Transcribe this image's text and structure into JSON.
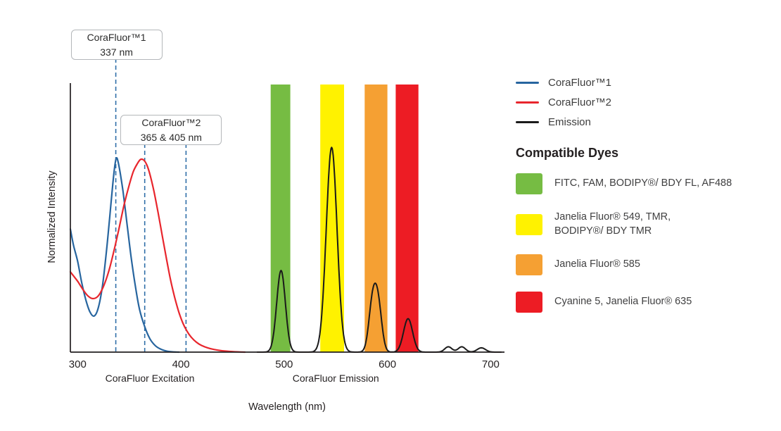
{
  "chart_data": {
    "type": "line",
    "xlabel": "Wavelength (nm)",
    "ylabel": "Normalized Intensity",
    "xlim": [
      293,
      712
    ],
    "ylim": [
      0,
      1
    ],
    "x_ticks": [
      300,
      400,
      500,
      600,
      700
    ],
    "grid": false,
    "axis_color": "#231f20",
    "marker_color": "#2f6ea8",
    "axis_section_labels": [
      {
        "text": "CoraFluor Excitation",
        "x": 370
      },
      {
        "text": "CoraFluor Emission",
        "x": 550
      }
    ],
    "callouts": [
      {
        "title": "CoraFluor™1",
        "value": "337 nm"
      },
      {
        "title": "CoraFluor™2",
        "value": "365 & 405 nm"
      }
    ],
    "excitation_markers": [
      {
        "nm": 337,
        "callout": 0
      },
      {
        "nm": 365,
        "callout": 1
      },
      {
        "nm": 405,
        "callout": 1
      }
    ],
    "bands": [
      {
        "range": [
          487,
          506
        ],
        "color": "#76bc43",
        "dyes": "FITC, FAM, BODIPY®/ BDY FL, AF488"
      },
      {
        "range": [
          535,
          558
        ],
        "color": "#fff200",
        "dyes": "Janelia Fluor® 549, TMR, BODIPY®/ BDY TMR"
      },
      {
        "range": [
          578,
          600
        ],
        "color": "#f5a033",
        "dyes": "Janelia Fluor® 585"
      },
      {
        "range": [
          608,
          630
        ],
        "color": "#ed1c24",
        "dyes": "Cyanine 5, Janelia Fluor® 635"
      }
    ],
    "series": [
      {
        "name": "CoraFluor™1",
        "color": "#27659f",
        "points": [
          [
            293,
            0.46
          ],
          [
            296,
            0.4
          ],
          [
            300,
            0.34
          ],
          [
            304,
            0.26
          ],
          [
            308,
            0.195
          ],
          [
            312,
            0.15
          ],
          [
            316,
            0.135
          ],
          [
            320,
            0.165
          ],
          [
            324,
            0.245
          ],
          [
            328,
            0.38
          ],
          [
            331,
            0.5
          ],
          [
            334,
            0.625
          ],
          [
            336,
            0.695
          ],
          [
            337.5,
            0.725
          ],
          [
            339,
            0.715
          ],
          [
            341,
            0.675
          ],
          [
            344,
            0.6
          ],
          [
            348,
            0.475
          ],
          [
            352,
            0.35
          ],
          [
            356,
            0.245
          ],
          [
            360,
            0.16
          ],
          [
            365,
            0.095
          ],
          [
            370,
            0.05
          ],
          [
            375,
            0.025
          ],
          [
            380,
            0.012
          ],
          [
            386,
            0.004
          ],
          [
            392,
            0.001
          ],
          [
            398,
            0
          ]
        ]
      },
      {
        "name": "CoraFluor™2",
        "color": "#e8262d",
        "points": [
          [
            293,
            0.3
          ],
          [
            297,
            0.28
          ],
          [
            300,
            0.265
          ],
          [
            305,
            0.235
          ],
          [
            310,
            0.21
          ],
          [
            315,
            0.2
          ],
          [
            320,
            0.21
          ],
          [
            325,
            0.245
          ],
          [
            330,
            0.3
          ],
          [
            335,
            0.375
          ],
          [
            340,
            0.46
          ],
          [
            345,
            0.55
          ],
          [
            350,
            0.625
          ],
          [
            354,
            0.675
          ],
          [
            358,
            0.705
          ],
          [
            361,
            0.72
          ],
          [
            364,
            0.718
          ],
          [
            367,
            0.7
          ],
          [
            370,
            0.665
          ],
          [
            374,
            0.6
          ],
          [
            378,
            0.52
          ],
          [
            382,
            0.435
          ],
          [
            386,
            0.35
          ],
          [
            390,
            0.27
          ],
          [
            394,
            0.205
          ],
          [
            398,
            0.15
          ],
          [
            402,
            0.108
          ],
          [
            406,
            0.078
          ],
          [
            410,
            0.056
          ],
          [
            415,
            0.037
          ],
          [
            420,
            0.025
          ],
          [
            426,
            0.016
          ],
          [
            432,
            0.01
          ],
          [
            440,
            0.005
          ],
          [
            450,
            0.002
          ],
          [
            462,
            0
          ]
        ]
      },
      {
        "name": "Emission",
        "color": "#1a1a1a",
        "range": [
          474,
          710
        ],
        "gaussians": [
          {
            "center": 497,
            "sigma": 4.2,
            "height": 0.305
          },
          {
            "center": 546,
            "sigma": 5.2,
            "height": 0.765
          },
          {
            "center": 585.5,
            "sigma": 3.6,
            "height": 0.175
          },
          {
            "center": 591,
            "sigma": 3.6,
            "height": 0.17
          },
          {
            "center": 620,
            "sigma": 4.4,
            "height": 0.125
          },
          {
            "center": 659,
            "sigma": 3.5,
            "height": 0.02
          },
          {
            "center": 672,
            "sigma": 3.5,
            "height": 0.02
          },
          {
            "center": 691,
            "sigma": 4,
            "height": 0.016
          }
        ]
      }
    ]
  },
  "legend": {
    "lines": [
      {
        "label": "CoraFluor™1",
        "color": "#27659f"
      },
      {
        "label": "CoraFluor™2",
        "color": "#e8262d"
      },
      {
        "label": "Emission",
        "color": "#1a1a1a"
      }
    ],
    "heading": "Compatible Dyes",
    "dyes": [
      {
        "label": "FITC, FAM, BODIPY®/ BDY FL, AF488",
        "color": "#76bc43"
      },
      {
        "label": "Janelia Fluor® 549, TMR,\nBODIPY®/ BDY TMR",
        "color": "#fff200"
      },
      {
        "label": "Janelia Fluor® 585",
        "color": "#f5a033"
      },
      {
        "label": "Cyanine 5, Janelia Fluor® 635",
        "color": "#ed1c24"
      }
    ]
  }
}
